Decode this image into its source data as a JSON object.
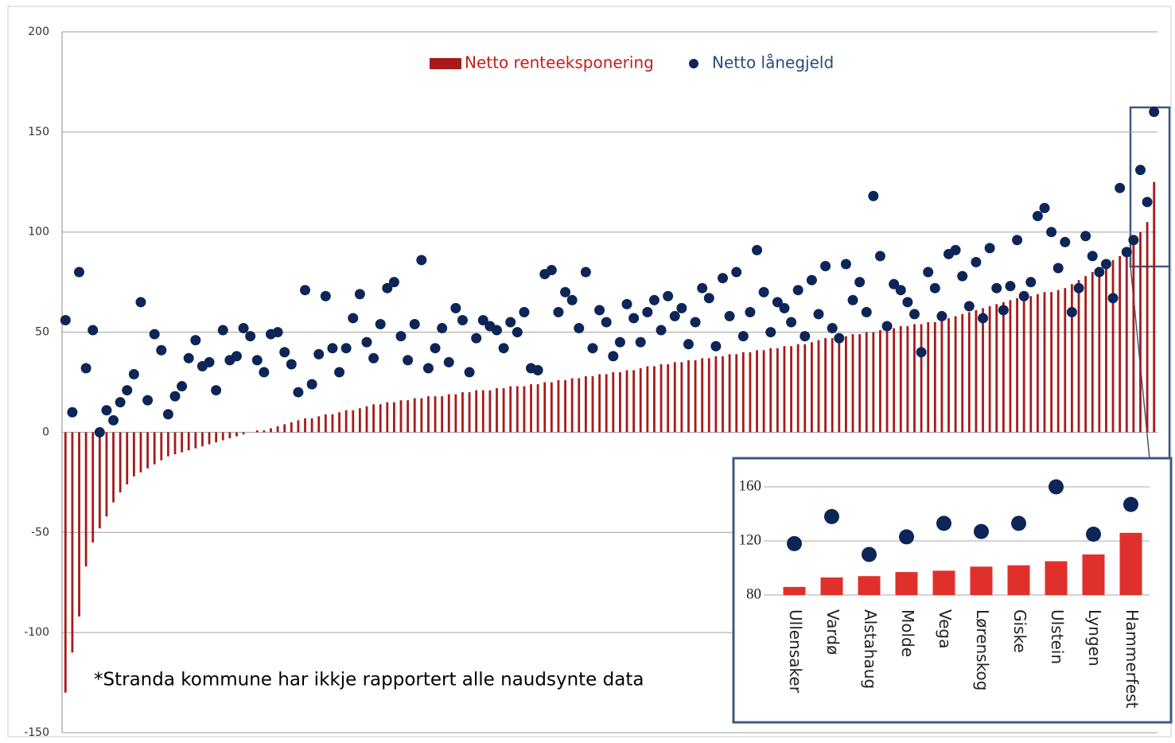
{
  "chart_data": [
    {
      "type": "combo",
      "annotation": "*Stranda kommune har ikkje rapportert alle naudsynte data",
      "ylim": [
        -150,
        200
      ],
      "yticks": [
        -150,
        -100,
        -50,
        0,
        50,
        100,
        150,
        200
      ],
      "grid": true,
      "legend": "top",
      "series": [
        {
          "name": "Netto renteeksponering",
          "type": "bar",
          "color": "#a81a1a",
          "values": [
            -130,
            -110,
            -92,
            -67,
            -55,
            -48,
            -42,
            -35,
            -30,
            -26,
            -22,
            -20,
            -18,
            -16,
            -14,
            -12,
            -11,
            -10,
            -9,
            -8,
            -7,
            -6,
            -5,
            -4,
            -3,
            -2,
            -1,
            0,
            1,
            1,
            2,
            3,
            4,
            5,
            6,
            7,
            7,
            8,
            9,
            9,
            10,
            11,
            11,
            12,
            13,
            14,
            14,
            15,
            15,
            16,
            16,
            17,
            17,
            18,
            18,
            18,
            19,
            19,
            20,
            20,
            21,
            21,
            21,
            22,
            22,
            23,
            23,
            23,
            24,
            24,
            25,
            25,
            26,
            26,
            27,
            27,
            28,
            28,
            29,
            29,
            30,
            30,
            31,
            31,
            32,
            33,
            33,
            34,
            34,
            35,
            35,
            36,
            36,
            37,
            37,
            38,
            38,
            39,
            39,
            40,
            40,
            41,
            41,
            42,
            42,
            43,
            43,
            44,
            44,
            45,
            46,
            47,
            47,
            48,
            48,
            49,
            49,
            50,
            50,
            51,
            51,
            52,
            53,
            53,
            54,
            54,
            55,
            55,
            56,
            57,
            58,
            59,
            60,
            61,
            62,
            63,
            64,
            65,
            66,
            67,
            67,
            68,
            69,
            70,
            70,
            71,
            72,
            74,
            76,
            78,
            80,
            82,
            84,
            86,
            88,
            92,
            96,
            100,
            105,
            125
          ]
        },
        {
          "name": "Netto lånegjeld",
          "type": "scatter",
          "color": "#0d2557",
          "values": [
            56,
            10,
            80,
            32,
            51,
            0,
            11,
            6,
            15,
            21,
            29,
            65,
            16,
            49,
            41,
            9,
            18,
            23,
            37,
            46,
            33,
            35,
            21,
            51,
            36,
            38,
            52,
            48,
            36,
            30,
            49,
            50,
            40,
            34,
            20,
            71,
            24,
            39,
            68,
            42,
            30,
            42,
            57,
            69,
            45,
            37,
            54,
            72,
            75,
            48,
            36,
            54,
            86,
            32,
            42,
            52,
            35,
            62,
            56,
            30,
            47,
            56,
            53,
            51,
            42,
            55,
            50,
            60,
            32,
            31,
            79,
            81,
            60,
            70,
            66,
            52,
            80,
            42,
            61,
            55,
            38,
            45,
            64,
            57,
            45,
            60,
            66,
            51,
            68,
            58,
            62,
            44,
            55,
            72,
            67,
            43,
            77,
            58,
            80,
            48,
            60,
            91,
            70,
            50,
            65,
            62,
            55,
            71,
            48,
            76,
            59,
            83,
            52,
            47,
            84,
            66,
            75,
            60,
            118,
            88,
            53,
            74,
            71,
            65,
            59,
            40,
            80,
            72,
            58,
            89,
            91,
            78,
            63,
            85,
            57,
            92,
            72,
            61,
            73,
            96,
            68,
            75,
            108,
            112,
            100,
            82,
            95,
            60,
            72,
            98,
            88,
            80,
            84,
            67,
            122,
            90,
            96,
            131,
            115,
            160
          ]
        }
      ]
    },
    {
      "type": "combo",
      "categories": [
        "Ullensaker",
        "Vardø",
        "Alstahaug",
        "Molde",
        "Vega",
        "Lørenskog",
        "Giske",
        "Ulstein",
        "Lyngen",
        "Hammerfest"
      ],
      "ylim": [
        80,
        170
      ],
      "yticks": [
        80,
        120,
        160
      ],
      "grid": true,
      "series": [
        {
          "type": "bar",
          "color": "#e0302b",
          "values": [
            86,
            93,
            94,
            97,
            98,
            101,
            102,
            105,
            110,
            126
          ]
        },
        {
          "type": "scatter",
          "color": "#0d2557",
          "values": [
            118,
            138,
            110,
            123,
            133,
            127,
            133,
            160,
            125,
            147
          ]
        }
      ]
    }
  ]
}
